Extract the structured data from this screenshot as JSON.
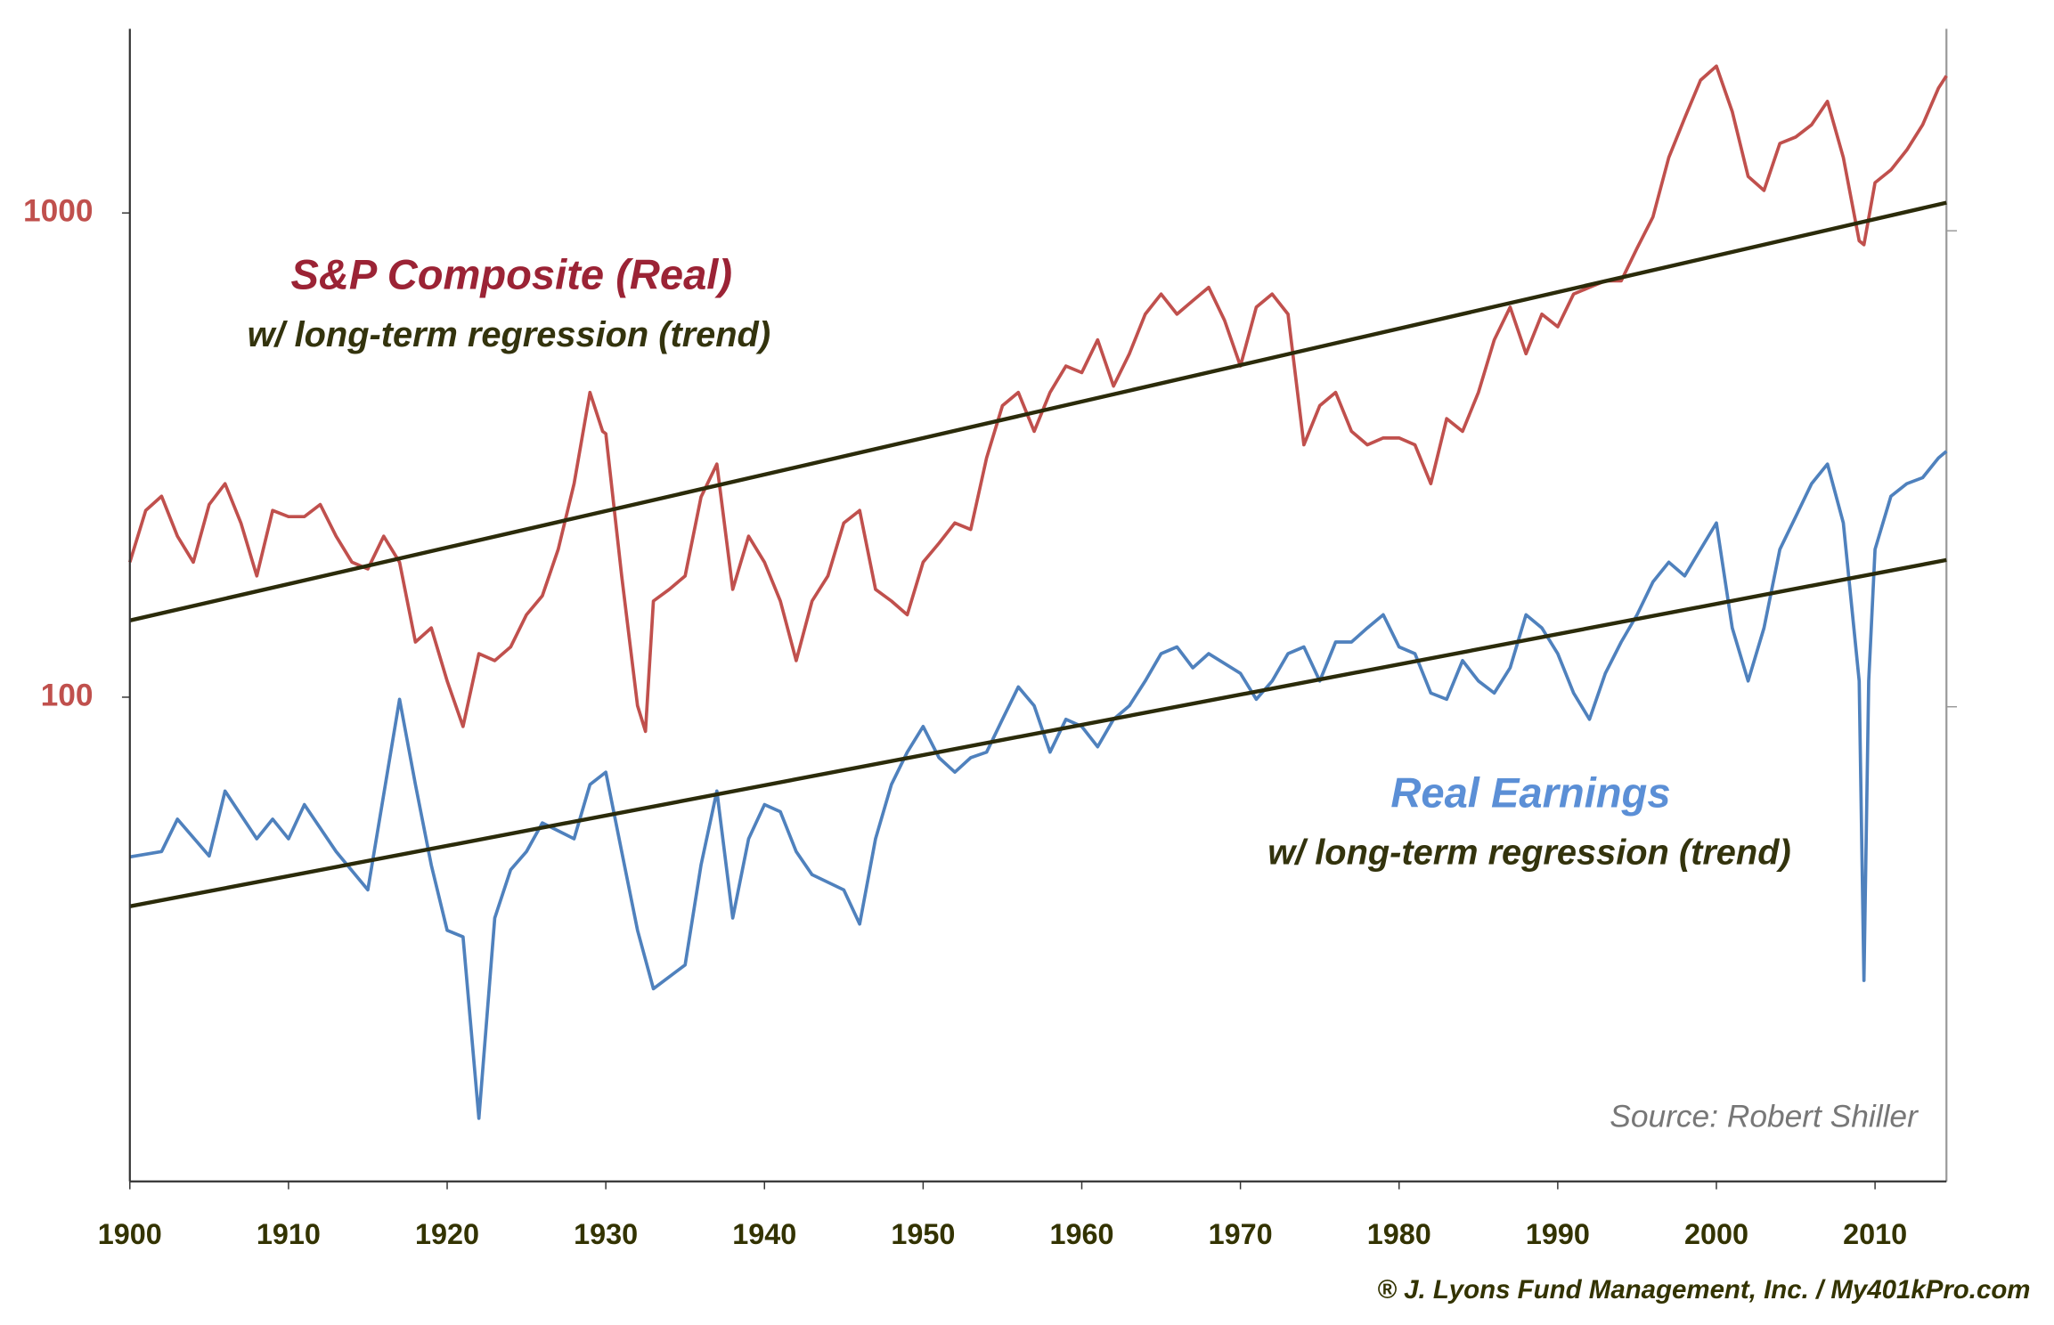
{
  "chart_data": {
    "type": "line",
    "yscale": "log",
    "source": "Source: Robert Shiller",
    "credit": "® J. Lyons Fund Management, Inc. / My401kPro.com",
    "xlim": [
      1900,
      2014.5
    ],
    "xticks": [
      1900,
      1910,
      1920,
      1930,
      1940,
      1950,
      1960,
      1970,
      1980,
      1990,
      2000,
      2010
    ],
    "ylim": [
      10,
      2400
    ],
    "yticks": [
      100,
      1000
    ],
    "series": [
      {
        "name": "S&P Composite (Real)",
        "color": "#c0504d",
        "x": [
          1900,
          1901,
          1902,
          1903,
          1904,
          1905,
          1906,
          1907,
          1908,
          1909,
          1910,
          1911,
          1912,
          1913,
          1914,
          1915,
          1916,
          1917,
          1918,
          1919,
          1920,
          1921,
          1922,
          1923,
          1924,
          1925,
          1926,
          1927,
          1928,
          1929,
          1929.8,
          1930,
          1931,
          1932,
          1932.5,
          1933,
          1934,
          1935,
          1936,
          1937,
          1938,
          1939,
          1940,
          1941,
          1942,
          1943,
          1944,
          1945,
          1946,
          1947,
          1948,
          1949,
          1950,
          1951,
          1952,
          1953,
          1954,
          1955,
          1956,
          1957,
          1958,
          1959,
          1960,
          1961,
          1962,
          1963,
          1964,
          1965,
          1966,
          1967,
          1968,
          1969,
          1970,
          1971,
          1972,
          1973,
          1974,
          1975,
          1976,
          1977,
          1978,
          1979,
          1980,
          1981,
          1982,
          1983,
          1984,
          1985,
          1986,
          1987,
          1988,
          1989,
          1990,
          1991,
          1992,
          1993,
          1994,
          1995,
          1996,
          1997,
          1998,
          1999,
          2000,
          2001,
          2002,
          2003,
          2004,
          2005,
          2006,
          2007,
          2008,
          2009,
          2009.3,
          2010,
          2011,
          2012,
          2013,
          2014,
          2014.5
        ],
        "values": [
          190,
          243,
          260,
          215,
          190,
          250,
          276,
          229,
          178,
          243,
          236,
          236,
          250,
          215,
          190,
          184,
          215,
          190,
          130,
          139,
          108,
          87,
          123,
          119,
          127,
          148,
          162,
          202,
          276,
          426,
          354,
          350,
          178,
          96,
          85,
          158,
          167,
          178,
          259,
          303,
          167,
          215,
          190,
          158,
          119,
          158,
          178,
          229,
          243,
          167,
          158,
          148,
          190,
          208,
          229,
          222,
          312,
          400,
          426,
          354,
          426,
          483,
          468,
          547,
          439,
          512,
          618,
          680,
          618,
          659,
          702,
          600,
          483,
          639,
          680,
          618,
          332,
          400,
          426,
          354,
          332,
          343,
          343,
          332,
          276,
          376,
          354,
          426,
          547,
          639,
          512,
          618,
          582,
          680,
          702,
          724,
          724,
          846,
          981,
          1302,
          1570,
          1880,
          2010,
          1619,
          1190,
          1113,
          1392,
          1435,
          1521,
          1700,
          1302,
          876,
          860,
          1155,
          1227,
          1349,
          1521,
          1811,
          1920
        ]
      },
      {
        "name": "Real Earnings",
        "color": "#4f81bd",
        "x": [
          1900,
          1902,
          1903,
          1905,
          1906,
          1908,
          1909,
          1910,
          1911,
          1913,
          1915,
          1917,
          1918,
          1919,
          1920,
          1921,
          1922,
          1923,
          1924,
          1925,
          1926,
          1928,
          1929,
          1930,
          1931,
          1932,
          1933,
          1935,
          1936,
          1937,
          1938,
          1939,
          1940,
          1941,
          1942,
          1943,
          1945,
          1946,
          1947,
          1948,
          1949,
          1950,
          1951,
          1952,
          1953,
          1954,
          1955,
          1956,
          1957,
          1958,
          1959,
          1960,
          1961,
          1962,
          1963,
          1964,
          1965,
          1966,
          1967,
          1968,
          1970,
          1971,
          1972,
          1973,
          1974,
          1975,
          1976,
          1977,
          1978,
          1979,
          1980,
          1981,
          1982,
          1983,
          1984,
          1985,
          1986,
          1987,
          1988,
          1989,
          1990,
          1991,
          1992,
          1993,
          1994,
          1995,
          1996,
          1997,
          1998,
          1999,
          2000,
          2001,
          2002,
          2003,
          2004,
          2005,
          2006,
          2007,
          2008,
          2009,
          2009.3,
          2009.6,
          2010,
          2011,
          2012,
          2013,
          2014,
          2014.5
        ],
        "values": [
          46.8,
          48,
          56,
          47,
          64,
          51,
          56,
          51,
          60,
          48,
          40,
          99,
          66,
          45,
          33,
          32,
          13.5,
          35,
          44,
          48,
          55,
          51,
          66,
          70,
          48,
          33,
          25,
          28,
          45,
          64,
          35,
          51,
          60,
          58,
          48,
          43,
          40,
          34,
          51,
          66,
          77,
          87,
          75,
          70,
          75,
          77,
          90,
          105,
          96,
          77,
          90,
          87,
          79,
          90,
          96,
          108,
          123,
          127,
          115,
          123,
          112,
          99,
          108,
          123,
          127,
          108,
          130,
          130,
          139,
          148,
          127,
          123,
          102,
          99,
          119,
          108,
          102,
          115,
          148,
          139,
          123,
          102,
          90,
          112,
          130,
          148,
          173,
          190,
          178,
          202,
          229,
          139,
          108,
          139,
          202,
          236,
          276,
          303,
          229,
          108,
          26,
          108,
          202,
          260,
          276,
          284,
          312,
          322
        ]
      },
      {
        "name": "w/ long-term regression (trend)",
        "color": "#2b2b0a",
        "x": [
          1900,
          2014.5
        ],
        "values": [
          144,
          1050
        ]
      },
      {
        "name": "w/ long-term regression (trend)",
        "color": "#2b2b0a",
        "x": [
          1900,
          2014.5
        ],
        "values": [
          37,
          192
        ]
      }
    ]
  }
}
